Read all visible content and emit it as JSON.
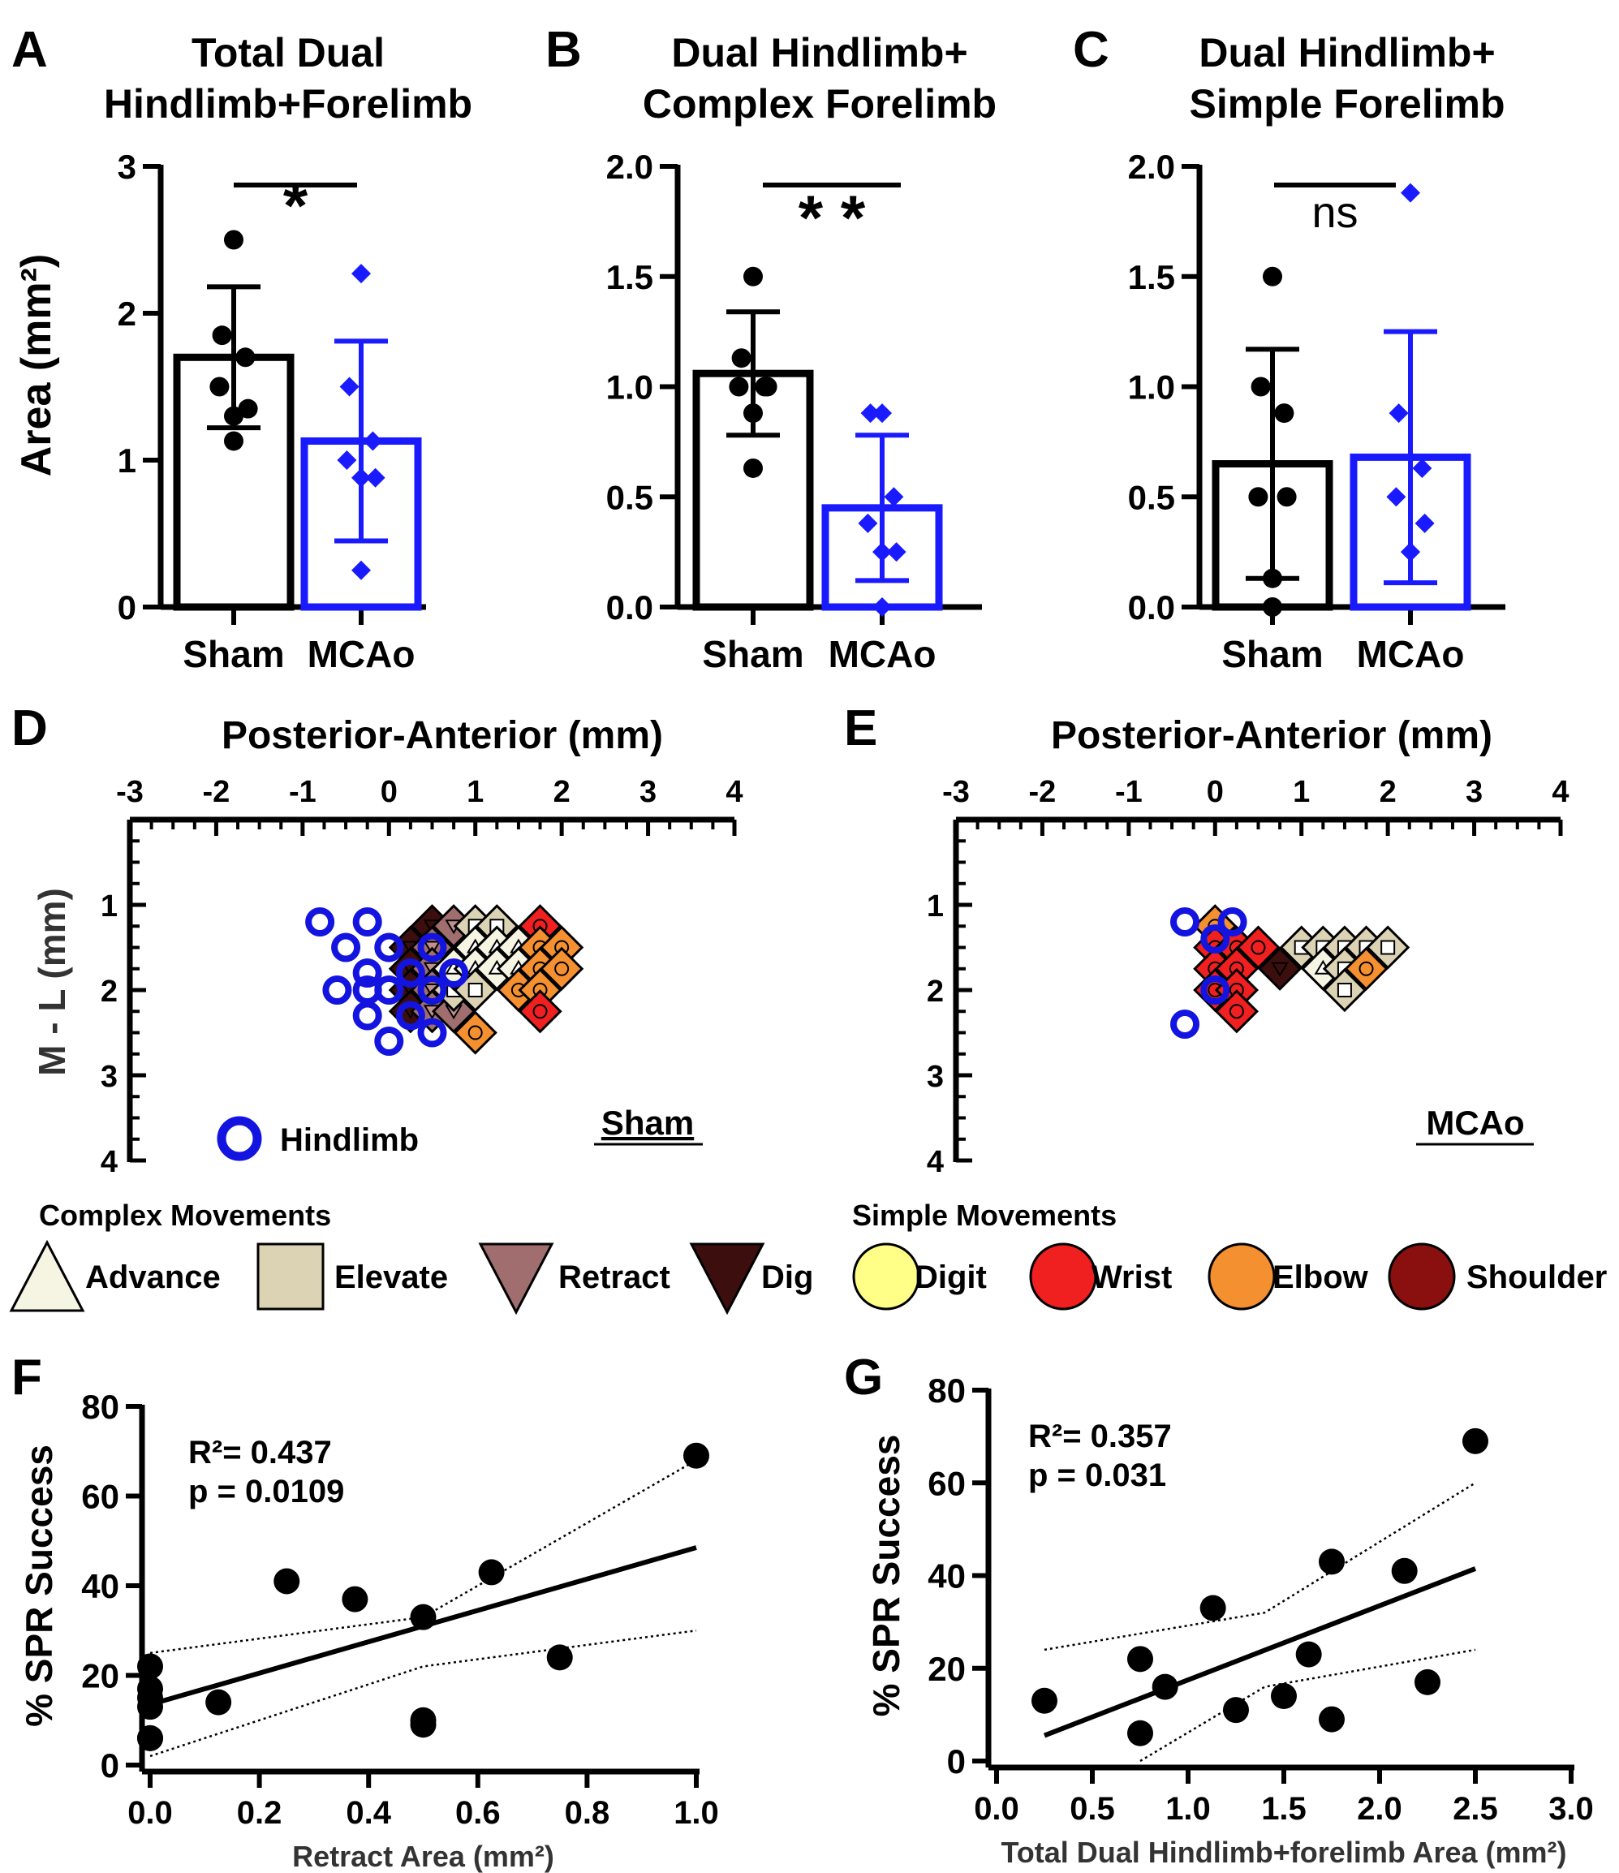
{
  "colors": {
    "sham": "#000000",
    "mcao": "#1a1aff",
    "hindlimb": "#1414e0",
    "advance": "#f6f4e2",
    "elevate": "#dcd2b4",
    "retract": "#a06e6e",
    "dig": "#3c0e0e",
    "digit": "#ffff88",
    "wrist": "#f02020",
    "elbow": "#f59030",
    "shoulder": "#8a1010"
  },
  "panels": {
    "A": {
      "letter": "A",
      "title1": "Total Dual",
      "title2": "Hindlimb+Forelimb"
    },
    "B": {
      "letter": "B",
      "title1": "Dual Hindlimb+",
      "title2": "Complex Forelimb"
    },
    "C": {
      "letter": "C",
      "title1": "Dual Hindlimb+",
      "title2": "Simple Forelimb"
    },
    "D": {
      "letter": "D",
      "xaxis_title": "Posterior-Anterior (mm)",
      "yaxis_title": "M - L (mm)",
      "group_label": "Sham",
      "hindlimb_label": "Hindlimb"
    },
    "E": {
      "letter": "E",
      "xaxis_title": "Posterior-Anterior (mm)",
      "group_label": "MCAo"
    },
    "F": {
      "letter": "F"
    },
    "G": {
      "letter": "G"
    }
  },
  "legend": {
    "complex_title": "Complex Movements",
    "simple_title": "Simple Movements",
    "items": [
      {
        "label": "Advance",
        "shape": "triangle-up-icon"
      },
      {
        "label": "Elevate",
        "shape": "square-icon"
      },
      {
        "label": "Retract",
        "shape": "triangle-down-icon"
      },
      {
        "label": "Dig",
        "shape": "triangle-down-icon"
      },
      {
        "label": "Digit",
        "shape": "circle-icon"
      },
      {
        "label": "Wrist",
        "shape": "circle-icon"
      },
      {
        "label": "Elbow",
        "shape": "circle-icon"
      },
      {
        "label": "Shoulder",
        "shape": "circle-icon"
      }
    ]
  },
  "chart_data": [
    {
      "id": "A",
      "type": "bar",
      "title": "Total Dual Hindlimb+Forelimb",
      "ylabel": "Area (mm²)",
      "ylim": [
        0,
        3
      ],
      "yticks": [
        0,
        1,
        2,
        3
      ],
      "categories": [
        "Sham",
        "MCAo"
      ],
      "series": [
        {
          "name": "Sham",
          "mean": 1.7,
          "sd": 0.48,
          "points": [
            2.5,
            1.85,
            1.7,
            1.5,
            1.35,
            1.3,
            1.13
          ]
        },
        {
          "name": "MCAo",
          "mean": 1.13,
          "sd": 0.68,
          "points": [
            2.27,
            1.5,
            1.13,
            1.0,
            0.88,
            0.88,
            0.25
          ]
        }
      ],
      "significance": "*"
    },
    {
      "id": "B",
      "type": "bar",
      "title": "Dual Hindlimb+ Complex Forelimb",
      "ylim": [
        0,
        2.0
      ],
      "yticks": [
        "0.0",
        "0.5",
        "1.0",
        "1.5",
        "2.0"
      ],
      "categories": [
        "Sham",
        "MCAo"
      ],
      "series": [
        {
          "name": "Sham",
          "mean": 1.06,
          "sd": 0.28,
          "points": [
            1.5,
            1.13,
            1.0,
            1.0,
            1.0,
            0.88,
            0.63
          ]
        },
        {
          "name": "MCAo",
          "mean": 0.45,
          "sd": 0.33,
          "points": [
            0.88,
            0.88,
            0.5,
            0.38,
            0.25,
            0.25,
            0.0
          ]
        }
      ],
      "significance": "**"
    },
    {
      "id": "C",
      "type": "bar",
      "title": "Dual Hindlimb+ Simple Forelimb",
      "ylim": [
        0,
        2.0
      ],
      "yticks": [
        "0.0",
        "0.5",
        "1.0",
        "1.5",
        "2.0"
      ],
      "categories": [
        "Sham",
        "MCAo"
      ],
      "series": [
        {
          "name": "Sham",
          "mean": 0.65,
          "sd": 0.52,
          "points": [
            1.5,
            1.0,
            0.88,
            0.5,
            0.5,
            0.13,
            0.0
          ]
        },
        {
          "name": "MCAo",
          "mean": 0.68,
          "sd": 0.57,
          "points": [
            1.88,
            0.88,
            0.63,
            0.5,
            0.38,
            0.25,
            0.25
          ]
        }
      ],
      "significance": "ns"
    },
    {
      "id": "D",
      "type": "scatter",
      "group": "Sham",
      "xlabel": "Posterior-Anterior (mm)",
      "ylabel": "M - L (mm)",
      "xlim": [
        -3,
        4
      ],
      "ylim": [
        0,
        4
      ],
      "xticks": [
        -3,
        -2,
        -1,
        0,
        1,
        2,
        3,
        4
      ],
      "yticks": [
        1,
        2,
        3,
        4
      ],
      "hindlimb": [
        [
          -0.8,
          1.2
        ],
        [
          -0.25,
          1.2
        ],
        [
          -0.5,
          1.5
        ],
        [
          0,
          1.5
        ],
        [
          -0.25,
          1.8
        ],
        [
          0.25,
          1.8
        ],
        [
          0.5,
          1.5
        ],
        [
          -0.6,
          2.0
        ],
        [
          -0.25,
          2.0
        ],
        [
          0,
          2.0
        ],
        [
          0.5,
          2.0
        ],
        [
          0.75,
          1.8
        ],
        [
          -0.25,
          2.3
        ],
        [
          0.25,
          2.3
        ],
        [
          0.5,
          2.5
        ],
        [
          0,
          2.6
        ]
      ],
      "forelimb": [
        {
          "x": 0.25,
          "y": 1.5,
          "move": "dig"
        },
        {
          "x": 0.5,
          "y": 1.25,
          "move": "dig"
        },
        {
          "x": 0.75,
          "y": 1.25,
          "move": "retract"
        },
        {
          "x": 0.5,
          "y": 1.5,
          "move": "retract"
        },
        {
          "x": 0.25,
          "y": 1.75,
          "move": "dig"
        },
        {
          "x": 0.5,
          "y": 1.75,
          "move": "retract"
        },
        {
          "x": 0.25,
          "y": 2.0,
          "move": "dig"
        },
        {
          "x": 0.5,
          "y": 2.0,
          "move": "retract"
        },
        {
          "x": 0.25,
          "y": 2.25,
          "move": "dig"
        },
        {
          "x": 0.5,
          "y": 2.25,
          "move": "retract"
        },
        {
          "x": 0.75,
          "y": 2.25,
          "move": "retract"
        },
        {
          "x": 0.75,
          "y": 2.0,
          "move": "elevate"
        },
        {
          "x": 1.0,
          "y": 1.25,
          "move": "elevate"
        },
        {
          "x": 1.25,
          "y": 1.25,
          "move": "elevate"
        },
        {
          "x": 1.0,
          "y": 1.5,
          "move": "advance"
        },
        {
          "x": 1.25,
          "y": 1.5,
          "move": "advance"
        },
        {
          "x": 1.5,
          "y": 1.5,
          "move": "advance"
        },
        {
          "x": 0.75,
          "y": 1.75,
          "move": "advance"
        },
        {
          "x": 1.0,
          "y": 1.75,
          "move": "advance"
        },
        {
          "x": 1.25,
          "y": 1.75,
          "move": "advance"
        },
        {
          "x": 1.5,
          "y": 1.75,
          "move": "advance"
        },
        {
          "x": 1.0,
          "y": 2.0,
          "move": "elevate"
        },
        {
          "x": 1.75,
          "y": 1.25,
          "move": "wrist"
        },
        {
          "x": 1.75,
          "y": 1.5,
          "move": "elbow"
        },
        {
          "x": 2.0,
          "y": 1.5,
          "move": "elbow"
        },
        {
          "x": 1.75,
          "y": 1.75,
          "move": "elbow"
        },
        {
          "x": 2.0,
          "y": 1.75,
          "move": "elbow"
        },
        {
          "x": 1.5,
          "y": 2.0,
          "move": "elbow"
        },
        {
          "x": 1.75,
          "y": 2.0,
          "move": "elbow"
        },
        {
          "x": 1.75,
          "y": 2.25,
          "move": "wrist"
        },
        {
          "x": 1.0,
          "y": 2.5,
          "move": "elbow"
        }
      ]
    },
    {
      "id": "E",
      "type": "scatter",
      "group": "MCAo",
      "xlabel": "Posterior-Anterior (mm)",
      "xlim": [
        -3,
        4
      ],
      "ylim": [
        0,
        4
      ],
      "xticks": [
        -3,
        -2,
        -1,
        0,
        1,
        2,
        3,
        4
      ],
      "yticks": [
        1,
        2,
        3,
        4
      ],
      "hindlimb": [
        [
          -0.35,
          1.2
        ],
        [
          0.2,
          1.2
        ],
        [
          0,
          1.4
        ],
        [
          0,
          2.0
        ],
        [
          -0.35,
          2.4
        ]
      ],
      "forelimb": [
        {
          "x": 0.0,
          "y": 1.25,
          "move": "elbow"
        },
        {
          "x": 0.0,
          "y": 1.5,
          "move": "wrist"
        },
        {
          "x": 0.25,
          "y": 1.5,
          "move": "wrist"
        },
        {
          "x": 0.5,
          "y": 1.5,
          "move": "wrist"
        },
        {
          "x": 0.0,
          "y": 1.75,
          "move": "wrist"
        },
        {
          "x": 0.25,
          "y": 1.75,
          "move": "wrist"
        },
        {
          "x": 0.0,
          "y": 2.0,
          "move": "wrist"
        },
        {
          "x": 0.25,
          "y": 2.0,
          "move": "wrist"
        },
        {
          "x": 0.25,
          "y": 2.25,
          "move": "wrist"
        },
        {
          "x": 0.75,
          "y": 1.75,
          "move": "dig"
        },
        {
          "x": 1.0,
          "y": 1.5,
          "move": "elevate"
        },
        {
          "x": 1.25,
          "y": 1.5,
          "move": "elevate"
        },
        {
          "x": 1.5,
          "y": 1.5,
          "move": "elevate"
        },
        {
          "x": 1.75,
          "y": 1.5,
          "move": "elevate"
        },
        {
          "x": 2.0,
          "y": 1.5,
          "move": "elevate"
        },
        {
          "x": 1.25,
          "y": 1.75,
          "move": "advance"
        },
        {
          "x": 1.5,
          "y": 1.75,
          "move": "elevate"
        },
        {
          "x": 1.75,
          "y": 1.75,
          "move": "elbow"
        },
        {
          "x": 1.5,
          "y": 2.0,
          "move": "elevate"
        }
      ]
    },
    {
      "id": "F",
      "type": "scatter",
      "xlabel": "Retract Area (mm²)",
      "ylabel": "% SPR Success",
      "xlim": [
        0,
        1.0
      ],
      "ylim": [
        0,
        80
      ],
      "xticks": [
        "0.0",
        "0.2",
        "0.4",
        "0.6",
        "0.8",
        "1.0"
      ],
      "yticks": [
        0,
        20,
        40,
        60,
        80
      ],
      "r2": "R²= 0.437",
      "p": "p = 0.0109",
      "x": [
        0,
        0,
        0,
        0,
        0,
        0,
        0.125,
        0.25,
        0.375,
        0.5,
        0.5,
        0.5,
        0.625,
        0.75,
        1.0
      ],
      "y": [
        22,
        17,
        15,
        13,
        6,
        6,
        14,
        41,
        37,
        33,
        10,
        9,
        43,
        24,
        69
      ],
      "fit": {
        "slope": 35,
        "intercept": 13.5
      },
      "ci_upper": [
        [
          0,
          25
        ],
        [
          0.5,
          33
        ],
        [
          1.0,
          68
        ]
      ],
      "ci_lower": [
        [
          0,
          2
        ],
        [
          0.5,
          22
        ],
        [
          1.0,
          30
        ]
      ]
    },
    {
      "id": "G",
      "type": "scatter",
      "xlabel": "Total Dual Hindlimb+forelimb Area (mm²)",
      "ylabel": "% SPR Success",
      "xlim": [
        0,
        3.0
      ],
      "ylim": [
        0,
        80
      ],
      "xticks": [
        "0.0",
        "0.5",
        "1.0",
        "1.5",
        "2.0",
        "2.5",
        "3.0"
      ],
      "yticks": [
        0,
        20,
        40,
        60,
        80
      ],
      "r2": "R²= 0.357",
      "p": "p = 0.031",
      "x": [
        0.25,
        0.75,
        0.75,
        0.88,
        1.13,
        1.25,
        1.5,
        1.63,
        1.75,
        1.75,
        2.13,
        2.25,
        2.5
      ],
      "y": [
        13,
        22,
        6,
        16,
        33,
        11,
        14,
        23,
        43,
        9,
        41,
        17,
        69
      ],
      "fit": {
        "slope": 16,
        "intercept": 1.5
      },
      "ci_upper": [
        [
          0.25,
          24
        ],
        [
          1.4,
          32
        ],
        [
          2.5,
          60
        ]
      ],
      "ci_lower": [
        [
          0.75,
          0
        ],
        [
          1.4,
          16
        ],
        [
          2.5,
          24
        ]
      ]
    }
  ]
}
